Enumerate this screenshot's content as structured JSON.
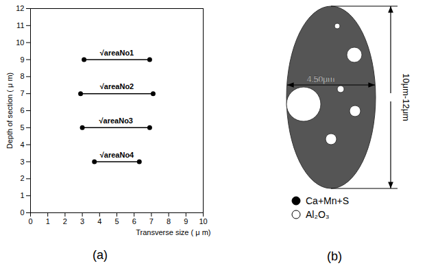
{
  "chart_data": {
    "type": "line",
    "x_label": "Transverse size ( μ m)",
    "y_label": "Depth of section ( μ m)",
    "xlim": [
      0,
      10
    ],
    "xticks": [
      0,
      1,
      2,
      3,
      4,
      5,
      6,
      7,
      8,
      9,
      10
    ],
    "ylim": [
      0,
      12
    ],
    "yticks": [
      0,
      1,
      2,
      3,
      4,
      5,
      6,
      7,
      8,
      9,
      10,
      11,
      12
    ],
    "color": "#000000",
    "marker": "circle",
    "line_style": "solid",
    "series": [
      {
        "name": "√areaNo1",
        "x": [
          3.1,
          6.9
        ],
        "values": [
          9,
          9
        ]
      },
      {
        "name": "√areaNo2",
        "x": [
          2.9,
          7.1
        ],
        "values": [
          7,
          7
        ]
      },
      {
        "name": "√areaNo3",
        "x": [
          3.0,
          6.9
        ],
        "values": [
          5,
          5
        ]
      },
      {
        "name": "√areaNo4",
        "x": [
          3.7,
          6.3
        ],
        "values": [
          3,
          3
        ]
      }
    ]
  },
  "diagram": {
    "width_label": "4.50μm",
    "height_label": "10μm-12μm",
    "legend": [
      {
        "label": "Ca+Mn+S",
        "fill": "#000000"
      },
      {
        "label": "Al₂O₃",
        "fill": "#ffffff"
      }
    ]
  },
  "panels": [
    "(a)",
    "(b)"
  ]
}
